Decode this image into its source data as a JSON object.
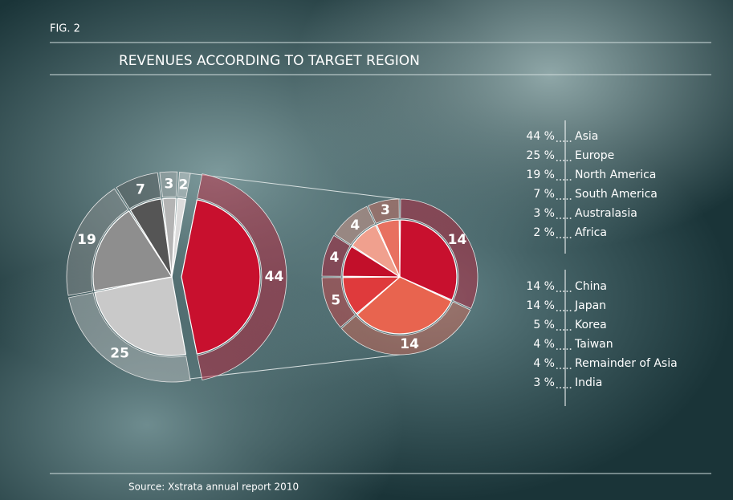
{
  "fig_label": "FIG. 2",
  "title": "REVENUES ACCORDING TO TARGET REGION",
  "source": "Source: Xstrata annual report 2010",
  "chart_data": [
    {
      "type": "pie",
      "categories": [
        "Asia",
        "Europe",
        "North America",
        "South America",
        "Australasia",
        "Africa"
      ],
      "values": [
        44,
        25,
        19,
        7,
        3,
        2
      ],
      "value_labels": [
        "44 %",
        "25 %",
        "19 %",
        "7 %",
        "3 %",
        "2 %"
      ],
      "colors": [
        "#c8102e",
        "#c9c9c9",
        "#8e8e8e",
        "#555555",
        "#b4b4b4",
        "#dcdcdc"
      ]
    },
    {
      "type": "pie",
      "categories": [
        "China",
        "Japan",
        "Korea",
        "Taiwan",
        "Remainder of Asia",
        "India"
      ],
      "values": [
        14,
        14,
        5,
        4,
        4,
        3
      ],
      "value_labels": [
        "14 %",
        "14 %",
        "5 %",
        "4 %",
        "4 %",
        "3 %"
      ],
      "colors": [
        "#c8102e",
        "#e8644f",
        "#df3a3c",
        "#c20f2a",
        "#f0a08e",
        "#e87060"
      ]
    }
  ]
}
